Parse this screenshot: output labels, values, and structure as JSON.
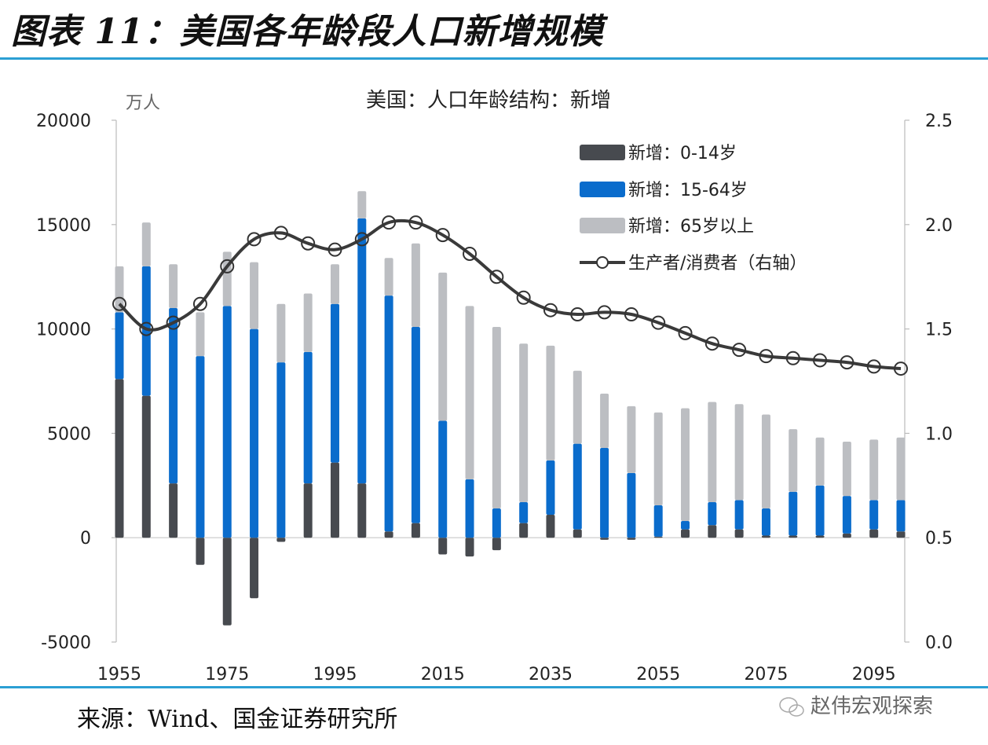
{
  "figure": {
    "title": "图表 11：美国各年龄段人口新增规模",
    "source": "来源：Wind、国金证券研究所",
    "watermark": "赵伟宏观探索"
  },
  "colors": {
    "age_0_14": "#474a4f",
    "age_15_64": "#0a6ccc",
    "age_65_plus": "#bcbec2",
    "ratio_line": "#3a3a3a",
    "rule": "#2b9fd4"
  },
  "chart_data": {
    "type": "bar",
    "stacked": true,
    "title": "美国：人口年龄结构：新增",
    "ylabel": "万人",
    "y2label": "",
    "xlabel": "",
    "ylim": [
      -5000,
      20000
    ],
    "yticks": [
      -5000,
      0,
      5000,
      10000,
      15000,
      20000
    ],
    "y2lim": [
      0.0,
      2.5
    ],
    "y2ticks": [
      "0.0",
      "0.5",
      "1.0",
      "1.5",
      "2.0",
      "2.5"
    ],
    "xtick_labels": [
      "1955",
      "1975",
      "1995",
      "2015",
      "2035",
      "2055",
      "2075",
      "2095"
    ],
    "legend_position": "top-right",
    "grid": false,
    "categories": [
      "1955",
      "1960",
      "1965",
      "1970",
      "1975",
      "1980",
      "1985",
      "1990",
      "1995",
      "2000",
      "2005",
      "2010",
      "2015",
      "2020",
      "2025",
      "2030",
      "2035",
      "2040",
      "2045",
      "2050",
      "2055",
      "2060",
      "2065",
      "2070",
      "2075",
      "2080",
      "2085",
      "2090",
      "2095",
      "2100"
    ],
    "series": [
      {
        "name": "新增：0-14岁",
        "type": "bar",
        "axis": "left",
        "values": [
          7600,
          6800,
          2600,
          -1300,
          -4200,
          -2900,
          -200,
          2600,
          3600,
          2600,
          300,
          700,
          -800,
          -900,
          -600,
          700,
          1100,
          400,
          -100,
          -100,
          50,
          400,
          600,
          400,
          100,
          100,
          100,
          200,
          400,
          300
        ]
      },
      {
        "name": "新增：15-64岁",
        "type": "bar",
        "axis": "left",
        "values": [
          3200,
          6200,
          8400,
          8700,
          11100,
          10000,
          8400,
          6300,
          7600,
          12700,
          11300,
          9400,
          5600,
          2800,
          1400,
          1000,
          2600,
          4100,
          4300,
          3100,
          1500,
          400,
          1100,
          1400,
          1300,
          2100,
          2400,
          1800,
          1400,
          1500
        ]
      },
      {
        "name": "新增：65岁以上",
        "type": "bar",
        "axis": "left",
        "values": [
          2200,
          2100,
          2100,
          2100,
          2600,
          3200,
          2800,
          2800,
          1900,
          1300,
          1800,
          4000,
          7100,
          8300,
          8700,
          7600,
          5500,
          3500,
          2600,
          3200,
          4450,
          5400,
          4800,
          4600,
          4500,
          3000,
          2300,
          2600,
          2900,
          3000
        ]
      },
      {
        "name": "生产者/消费者（右轴）",
        "type": "line",
        "axis": "right",
        "marker": "circle-open",
        "values": [
          1.62,
          1.5,
          1.53,
          1.62,
          1.8,
          1.93,
          1.96,
          1.91,
          1.88,
          1.93,
          2.01,
          2.01,
          1.95,
          1.86,
          1.75,
          1.65,
          1.59,
          1.57,
          1.58,
          1.57,
          1.53,
          1.48,
          1.43,
          1.4,
          1.37,
          1.36,
          1.35,
          1.34,
          1.32,
          1.31
        ]
      }
    ]
  }
}
